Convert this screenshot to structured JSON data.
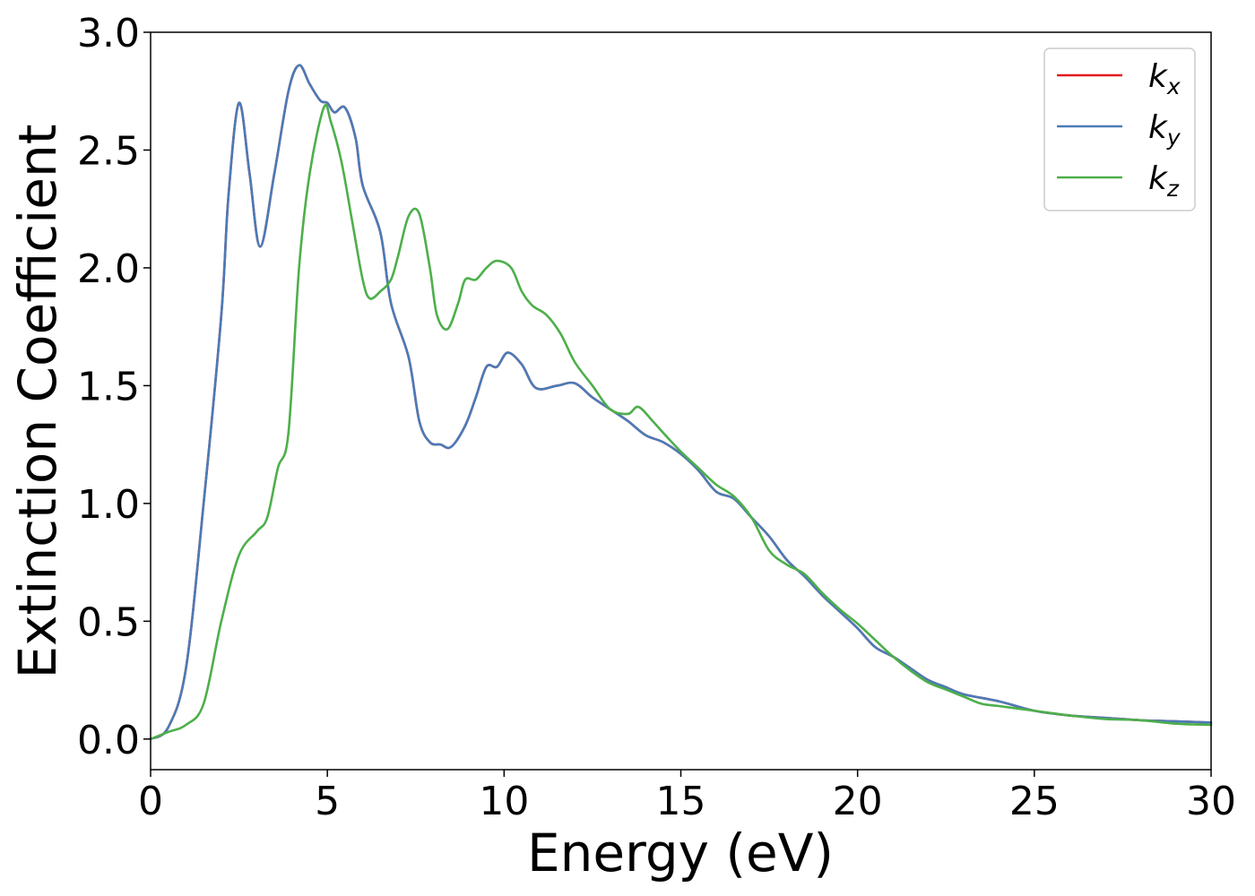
{
  "chart_data": {
    "type": "line",
    "xlabel": "Energy (eV)",
    "ylabel": "Extinction Coefficient",
    "xlim": [
      0,
      30
    ],
    "ylim": [
      -0.13,
      3.0
    ],
    "x_ticks": [
      0,
      5,
      10,
      15,
      20,
      25,
      30
    ],
    "x_tick_labels": [
      "0",
      "5",
      "10",
      "15",
      "20",
      "25",
      "30"
    ],
    "y_ticks": [
      0.0,
      0.5,
      1.0,
      1.5,
      2.0,
      2.5,
      3.0
    ],
    "y_tick_labels": [
      "0.0",
      "0.5",
      "1.0",
      "1.5",
      "2.0",
      "2.5",
      "3.0"
    ],
    "grid": false,
    "legend_position": "top-right",
    "series": [
      {
        "name": "k",
        "subscript": "x",
        "color": "#e41a1c",
        "points": [
          [
            0,
            0
          ],
          [
            0.5,
            0.05
          ],
          [
            1,
            0.3
          ],
          [
            1.5,
            1.0
          ],
          [
            2,
            1.8
          ],
          [
            2.2,
            2.3
          ],
          [
            2.5,
            2.7
          ],
          [
            2.8,
            2.4
          ],
          [
            3.1,
            2.09
          ],
          [
            3.5,
            2.4
          ],
          [
            3.9,
            2.75
          ],
          [
            4.2,
            2.86
          ],
          [
            4.5,
            2.78
          ],
          [
            4.8,
            2.71
          ],
          [
            5.0,
            2.7
          ],
          [
            5.2,
            2.66
          ],
          [
            5.5,
            2.68
          ],
          [
            5.8,
            2.55
          ],
          [
            6.0,
            2.35
          ],
          [
            6.5,
            2.15
          ],
          [
            6.8,
            1.85
          ],
          [
            7.3,
            1.62
          ],
          [
            7.6,
            1.35
          ],
          [
            7.9,
            1.26
          ],
          [
            8.2,
            1.25
          ],
          [
            8.5,
            1.24
          ],
          [
            8.9,
            1.33
          ],
          [
            9.2,
            1.45
          ],
          [
            9.5,
            1.58
          ],
          [
            9.8,
            1.58
          ],
          [
            10.1,
            1.64
          ],
          [
            10.5,
            1.59
          ],
          [
            10.9,
            1.49
          ],
          [
            11.5,
            1.5
          ],
          [
            12.0,
            1.51
          ],
          [
            12.5,
            1.45
          ],
          [
            13,
            1.4
          ],
          [
            13.5,
            1.35
          ],
          [
            14,
            1.29
          ],
          [
            14.5,
            1.26
          ],
          [
            15,
            1.21
          ],
          [
            15.5,
            1.14
          ],
          [
            16,
            1.05
          ],
          [
            16.5,
            1.02
          ],
          [
            17,
            0.94
          ],
          [
            17.5,
            0.86
          ],
          [
            18,
            0.76
          ],
          [
            18.5,
            0.69
          ],
          [
            19,
            0.61
          ],
          [
            19.5,
            0.54
          ],
          [
            20,
            0.47
          ],
          [
            20.5,
            0.39
          ],
          [
            21,
            0.35
          ],
          [
            21.5,
            0.3
          ],
          [
            22,
            0.25
          ],
          [
            22.5,
            0.22
          ],
          [
            23,
            0.19
          ],
          [
            24,
            0.16
          ],
          [
            25,
            0.12
          ],
          [
            26,
            0.1
          ],
          [
            27,
            0.09
          ],
          [
            28,
            0.08
          ],
          [
            29,
            0.075
          ],
          [
            30,
            0.07
          ]
        ]
      },
      {
        "name": "k",
        "subscript": "y",
        "color": "#4a7bb7",
        "points": [
          [
            0,
            0
          ],
          [
            0.5,
            0.05
          ],
          [
            1,
            0.3
          ],
          [
            1.5,
            1.0
          ],
          [
            2,
            1.8
          ],
          [
            2.2,
            2.3
          ],
          [
            2.5,
            2.7
          ],
          [
            2.8,
            2.4
          ],
          [
            3.1,
            2.09
          ],
          [
            3.5,
            2.4
          ],
          [
            3.9,
            2.75
          ],
          [
            4.2,
            2.86
          ],
          [
            4.5,
            2.78
          ],
          [
            4.8,
            2.71
          ],
          [
            5.0,
            2.7
          ],
          [
            5.2,
            2.66
          ],
          [
            5.5,
            2.68
          ],
          [
            5.8,
            2.55
          ],
          [
            6.0,
            2.35
          ],
          [
            6.5,
            2.15
          ],
          [
            6.8,
            1.85
          ],
          [
            7.3,
            1.62
          ],
          [
            7.6,
            1.35
          ],
          [
            7.9,
            1.26
          ],
          [
            8.2,
            1.25
          ],
          [
            8.5,
            1.24
          ],
          [
            8.9,
            1.33
          ],
          [
            9.2,
            1.45
          ],
          [
            9.5,
            1.58
          ],
          [
            9.8,
            1.58
          ],
          [
            10.1,
            1.64
          ],
          [
            10.5,
            1.59
          ],
          [
            10.9,
            1.49
          ],
          [
            11.5,
            1.5
          ],
          [
            12.0,
            1.51
          ],
          [
            12.5,
            1.45
          ],
          [
            13,
            1.4
          ],
          [
            13.5,
            1.35
          ],
          [
            14,
            1.29
          ],
          [
            14.5,
            1.26
          ],
          [
            15,
            1.21
          ],
          [
            15.5,
            1.14
          ],
          [
            16,
            1.05
          ],
          [
            16.5,
            1.02
          ],
          [
            17,
            0.94
          ],
          [
            17.5,
            0.86
          ],
          [
            18,
            0.76
          ],
          [
            18.5,
            0.69
          ],
          [
            19,
            0.61
          ],
          [
            19.5,
            0.54
          ],
          [
            20,
            0.47
          ],
          [
            20.5,
            0.39
          ],
          [
            21,
            0.35
          ],
          [
            21.5,
            0.3
          ],
          [
            22,
            0.25
          ],
          [
            22.5,
            0.22
          ],
          [
            23,
            0.19
          ],
          [
            24,
            0.16
          ],
          [
            25,
            0.12
          ],
          [
            26,
            0.1
          ],
          [
            27,
            0.09
          ],
          [
            28,
            0.08
          ],
          [
            29,
            0.075
          ],
          [
            30,
            0.07
          ]
        ]
      },
      {
        "name": "k",
        "subscript": "z",
        "color": "#4daf4a",
        "points": [
          [
            0,
            0
          ],
          [
            0.5,
            0.03
          ],
          [
            1,
            0.06
          ],
          [
            1.5,
            0.15
          ],
          [
            2,
            0.5
          ],
          [
            2.5,
            0.78
          ],
          [
            3,
            0.88
          ],
          [
            3.3,
            0.94
          ],
          [
            3.6,
            1.15
          ],
          [
            3.9,
            1.3
          ],
          [
            4.2,
            2.0
          ],
          [
            4.5,
            2.4
          ],
          [
            4.9,
            2.68
          ],
          [
            5.1,
            2.62
          ],
          [
            5.4,
            2.45
          ],
          [
            5.7,
            2.2
          ],
          [
            6.0,
            1.95
          ],
          [
            6.2,
            1.87
          ],
          [
            6.5,
            1.9
          ],
          [
            6.8,
            1.95
          ],
          [
            7.0,
            2.05
          ],
          [
            7.3,
            2.22
          ],
          [
            7.6,
            2.23
          ],
          [
            7.9,
            2.0
          ],
          [
            8.1,
            1.8
          ],
          [
            8.4,
            1.74
          ],
          [
            8.7,
            1.85
          ],
          [
            8.9,
            1.95
          ],
          [
            9.2,
            1.95
          ],
          [
            9.5,
            2.0
          ],
          [
            9.8,
            2.03
          ],
          [
            10.2,
            2.0
          ],
          [
            10.5,
            1.9
          ],
          [
            10.8,
            1.84
          ],
          [
            11.2,
            1.8
          ],
          [
            11.6,
            1.72
          ],
          [
            12,
            1.6
          ],
          [
            12.5,
            1.5
          ],
          [
            13,
            1.4
          ],
          [
            13.5,
            1.38
          ],
          [
            13.8,
            1.41
          ],
          [
            14.2,
            1.35
          ],
          [
            14.5,
            1.3
          ],
          [
            15,
            1.22
          ],
          [
            15.5,
            1.15
          ],
          [
            16,
            1.08
          ],
          [
            16.5,
            1.03
          ],
          [
            17,
            0.94
          ],
          [
            17.5,
            0.8
          ],
          [
            18,
            0.74
          ],
          [
            18.5,
            0.7
          ],
          [
            19,
            0.62
          ],
          [
            19.5,
            0.55
          ],
          [
            20,
            0.49
          ],
          [
            20.5,
            0.42
          ],
          [
            21,
            0.35
          ],
          [
            21.5,
            0.29
          ],
          [
            22,
            0.24
          ],
          [
            22.5,
            0.21
          ],
          [
            23,
            0.18
          ],
          [
            23.5,
            0.15
          ],
          [
            24,
            0.14
          ],
          [
            25,
            0.12
          ],
          [
            26,
            0.1
          ],
          [
            27,
            0.085
          ],
          [
            28,
            0.08
          ],
          [
            29,
            0.065
          ],
          [
            30,
            0.06
          ]
        ]
      }
    ]
  }
}
